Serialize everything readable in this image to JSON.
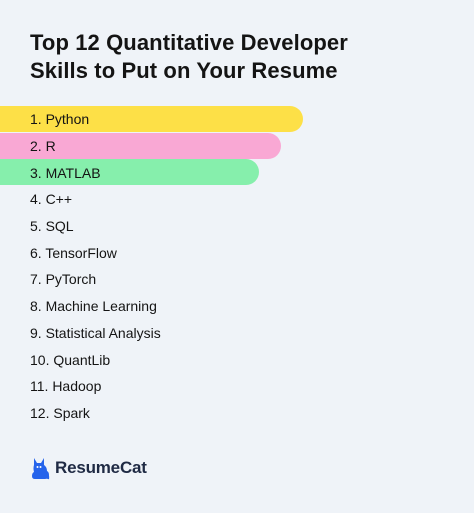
{
  "header": {
    "title_line1": "Top 12 Quantitative Developer",
    "title_line2": "Skills to Put on Your Resume"
  },
  "skills": [
    {
      "label": "1. Python",
      "highlight": "#fde047",
      "bar_fraction": 0.64
    },
    {
      "label": "2. R",
      "highlight": "#f9a8d4",
      "bar_fraction": 0.593
    },
    {
      "label": "3. MATLAB",
      "highlight": "#86efac",
      "bar_fraction": 0.547
    },
    {
      "label": "4. C++"
    },
    {
      "label": "5. SQL"
    },
    {
      "label": "6. TensorFlow"
    },
    {
      "label": "7. PyTorch"
    },
    {
      "label": "8. Machine Learning"
    },
    {
      "label": "9. Statistical Analysis"
    },
    {
      "label": "10. QuantLib"
    },
    {
      "label": "11. Hadoop"
    },
    {
      "label": "12. Spark"
    }
  ],
  "brand": {
    "name": "ResumeCat",
    "icon": "cat-icon",
    "color": "#2563eb"
  }
}
